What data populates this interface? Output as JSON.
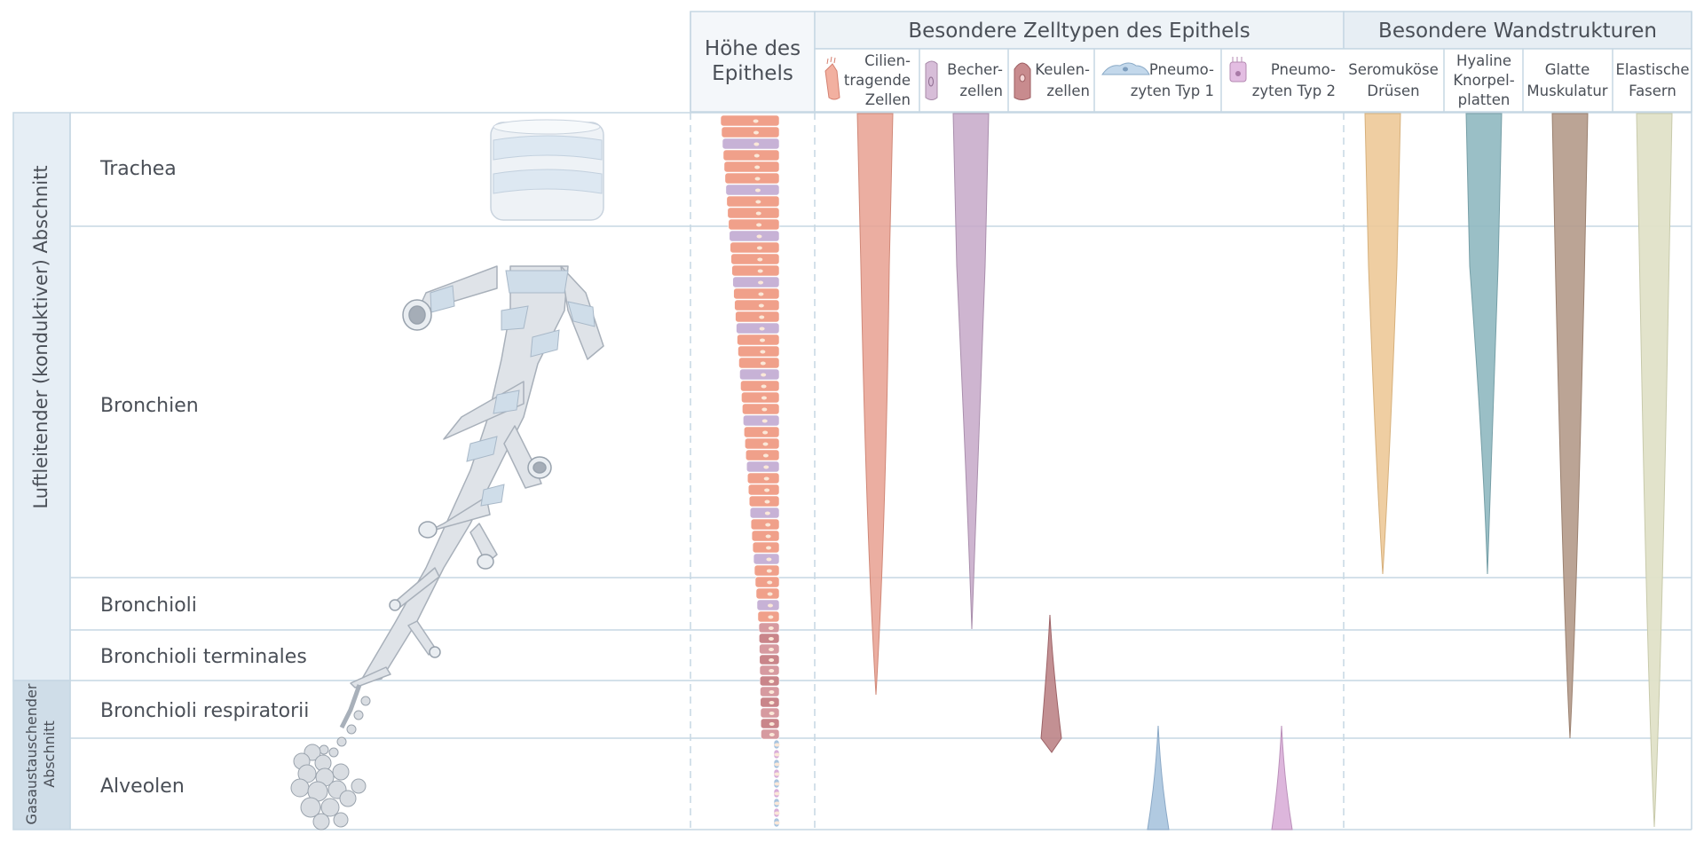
{
  "headers": {
    "epithelium_height": [
      "Höhe des",
      "Epithels"
    ],
    "cell_types": "Besondere Zelltypen des Epithels",
    "wall_structures": "Besondere Wandstrukturen"
  },
  "columns": [
    {
      "id": "cilia",
      "lines": [
        "Cilien-",
        "tragende",
        "Zellen"
      ],
      "icon": "ciliated-cell-icon",
      "color": "#e8a090"
    },
    {
      "id": "goblet",
      "lines": [
        "Becher-",
        "zellen"
      ],
      "icon": "goblet-cell-icon",
      "color": "#c5a8c8"
    },
    {
      "id": "club",
      "lines": [
        "Keulen-",
        "zellen"
      ],
      "icon": "club-cell-icon",
      "color": "#b87c80"
    },
    {
      "id": "pneumo1",
      "lines": [
        "Pneumo-",
        "zyten Typ 1"
      ],
      "icon": "pneumocyte-type-1-icon",
      "color": "#a9c4de"
    },
    {
      "id": "pneumo2",
      "lines": [
        "Pneumo-",
        "zyten Typ 2"
      ],
      "icon": "pneumocyte-type-2-icon",
      "color": "#d9aed8"
    },
    {
      "id": "glands",
      "lines": [
        "Seromuköse",
        "Drüsen"
      ],
      "color": "#edc998"
    },
    {
      "id": "cartilage",
      "lines": [
        "Hyaline",
        "Knorpel-",
        "platten"
      ],
      "color": "#8fb8c0"
    },
    {
      "id": "muscle",
      "lines": [
        "Glatte",
        "Muskulatur"
      ],
      "color": "#b49a8a"
    },
    {
      "id": "elastic",
      "lines": [
        "Elastische",
        "Fasern"
      ],
      "color": "#e0e2c8"
    }
  ],
  "rows": [
    {
      "id": "trachea",
      "label": "Trachea"
    },
    {
      "id": "bronchien",
      "label": "Bronchien"
    },
    {
      "id": "bronchioli",
      "label": "Bronchioli"
    },
    {
      "id": "terminales",
      "label": "Bronchioli terminales"
    },
    {
      "id": "respiratorii",
      "label": "Bronchioli respiratorii"
    },
    {
      "id": "alveolen",
      "label": "Alveolen"
    }
  ],
  "sections": {
    "conducting": "Luftleitender (konduktiver) Abschnitt",
    "gas_exchange": [
      "Gasaustauschender",
      "Abschnitt"
    ]
  },
  "colors": {
    "grid": "#c6d7e3",
    "header_bg": "#eef3f7",
    "side_bg_1": "#e6eef5",
    "side_bg_2": "#cfdde8",
    "epithelium_pink": "#f0a08a",
    "epithelium_purple": "#c7b2d6"
  }
}
